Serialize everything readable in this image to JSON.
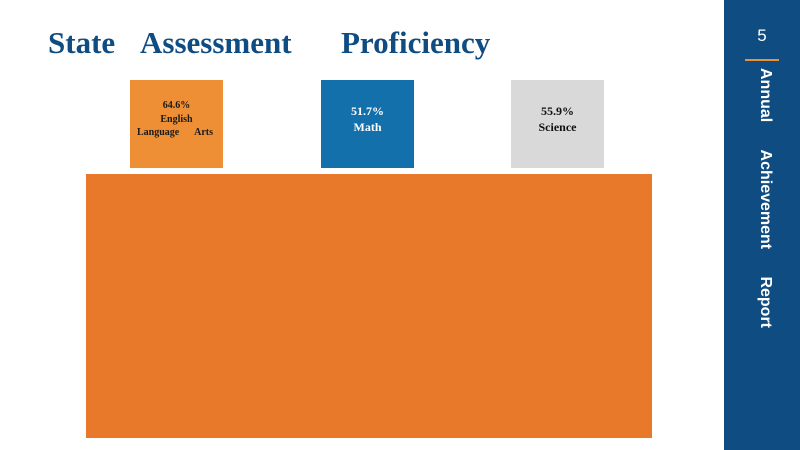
{
  "title": {
    "word1": "State",
    "word2": "Assessment",
    "word3": "Proficiency"
  },
  "cards": {
    "ela": {
      "percent": "64.6%",
      "line1": "English",
      "line2a": "Language",
      "line2b": "Arts",
      "color": "#ef8f35"
    },
    "math": {
      "percent": "51.7%",
      "subject": "Math",
      "color": "#1470ab"
    },
    "science": {
      "percent": "55.9%",
      "subject": "Science",
      "color": "#d9d9d9"
    }
  },
  "sidebar": {
    "page_number": "5",
    "title_word1": "Annual",
    "title_word2": "Achievement",
    "title_word3": "Report",
    "color": "#0f4c81",
    "accent": "#ef8f35"
  },
  "block": {
    "color": "#e8792a"
  }
}
